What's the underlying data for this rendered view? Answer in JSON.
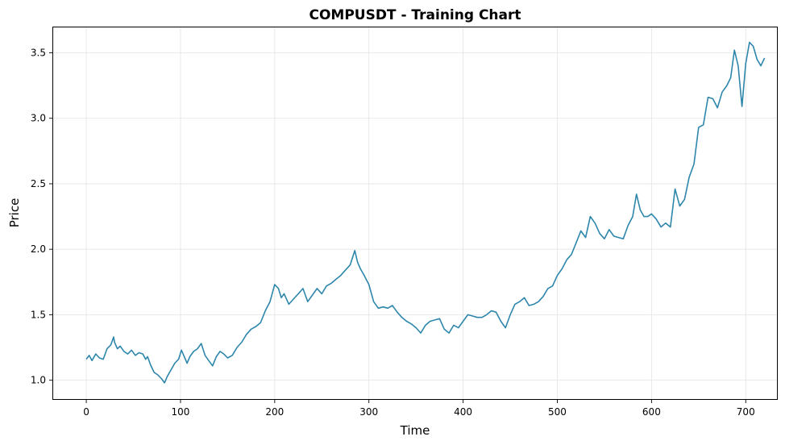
{
  "chart_data": {
    "type": "line",
    "title": "COMPUSDT - Training Chart",
    "xlabel": "Time",
    "ylabel": "Price",
    "xlim": [
      -36,
      734
    ],
    "ylim": [
      0.85,
      3.7
    ],
    "xticks": [
      0,
      100,
      200,
      300,
      400,
      500,
      600,
      700
    ],
    "xtick_labels": [
      "0",
      "100",
      "200",
      "300",
      "400",
      "500",
      "600",
      "700"
    ],
    "yticks": [
      1.0,
      1.5,
      2.0,
      2.5,
      3.0,
      3.5
    ],
    "ytick_labels": [
      "1.0",
      "1.5",
      "2.0",
      "2.5",
      "3.0",
      "3.5"
    ],
    "grid": true,
    "legend": "none",
    "line_color": "#2e86ab",
    "series": [
      {
        "x": [
          0,
          3,
          6,
          10,
          14,
          18,
          22,
          26,
          29,
          30,
          33,
          36,
          40,
          44,
          48,
          52,
          56,
          60,
          63,
          65,
          68,
          72,
          76,
          80,
          83,
          86,
          90,
          94,
          98,
          101,
          104,
          107,
          110,
          114,
          118,
          122,
          126,
          130,
          134,
          138,
          142,
          146,
          150,
          155,
          160,
          165,
          170,
          175,
          180,
          185,
          190,
          195,
          200,
          204,
          207,
          210,
          215,
          220,
          225,
          230,
          235,
          240,
          245,
          250,
          255,
          260,
          265,
          270,
          275,
          280,
          285,
          288,
          291,
          295,
          300,
          305,
          310,
          315,
          320,
          325,
          330,
          335,
          340,
          345,
          350,
          355,
          360,
          365,
          370,
          375,
          380,
          385,
          390,
          395,
          400,
          405,
          410,
          415,
          420,
          425,
          430,
          435,
          440,
          445,
          450,
          455,
          460,
          465,
          470,
          475,
          480,
          485,
          490,
          495,
          500,
          505,
          510,
          515,
          520,
          525,
          530,
          535,
          540,
          545,
          550,
          555,
          560,
          565,
          570,
          575,
          580,
          584,
          588,
          592,
          596,
          600,
          605,
          610,
          615,
          620,
          625,
          630,
          635,
          640,
          645,
          650,
          655,
          660,
          665,
          670,
          675,
          680,
          684,
          688,
          692,
          696,
          700,
          704,
          708,
          712,
          716,
          720
        ],
        "values": [
          1.16,
          1.19,
          1.15,
          1.2,
          1.17,
          1.16,
          1.24,
          1.27,
          1.33,
          1.29,
          1.24,
          1.26,
          1.22,
          1.2,
          1.23,
          1.19,
          1.21,
          1.2,
          1.16,
          1.18,
          1.12,
          1.06,
          1.04,
          1.01,
          0.98,
          1.03,
          1.08,
          1.13,
          1.16,
          1.23,
          1.18,
          1.13,
          1.18,
          1.22,
          1.24,
          1.28,
          1.19,
          1.15,
          1.11,
          1.18,
          1.22,
          1.2,
          1.17,
          1.19,
          1.25,
          1.29,
          1.35,
          1.39,
          1.41,
          1.44,
          1.53,
          1.6,
          1.73,
          1.7,
          1.63,
          1.66,
          1.58,
          1.62,
          1.66,
          1.7,
          1.6,
          1.65,
          1.7,
          1.66,
          1.72,
          1.74,
          1.77,
          1.8,
          1.84,
          1.88,
          1.99,
          1.9,
          1.85,
          1.8,
          1.73,
          1.6,
          1.55,
          1.56,
          1.55,
          1.57,
          1.52,
          1.48,
          1.45,
          1.43,
          1.4,
          1.36,
          1.42,
          1.45,
          1.46,
          1.47,
          1.39,
          1.36,
          1.42,
          1.4,
          1.45,
          1.5,
          1.49,
          1.48,
          1.48,
          1.5,
          1.53,
          1.52,
          1.45,
          1.4,
          1.5,
          1.58,
          1.6,
          1.63,
          1.57,
          1.58,
          1.6,
          1.64,
          1.7,
          1.72,
          1.8,
          1.85,
          1.92,
          1.96,
          2.05,
          2.14,
          2.09,
          2.25,
          2.2,
          2.12,
          2.08,
          2.15,
          2.1,
          2.09,
          2.08,
          2.18,
          2.25,
          2.42,
          2.3,
          2.25,
          2.25,
          2.27,
          2.23,
          2.17,
          2.2,
          2.17,
          2.46,
          2.33,
          2.38,
          2.55,
          2.65,
          2.93,
          2.95,
          3.16,
          3.15,
          3.08,
          3.2,
          3.25,
          3.31,
          3.52,
          3.4,
          3.09,
          3.42,
          3.58,
          3.55,
          3.45,
          3.4,
          3.46
        ]
      }
    ]
  }
}
